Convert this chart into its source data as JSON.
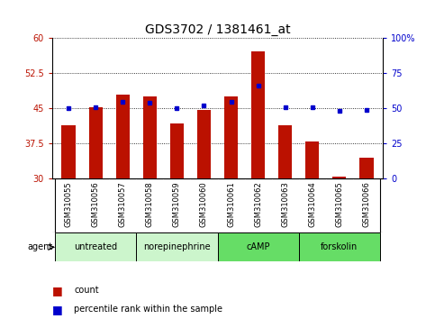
{
  "title": "GDS3702 / 1381461_at",
  "samples": [
    "GSM310055",
    "GSM310056",
    "GSM310057",
    "GSM310058",
    "GSM310059",
    "GSM310060",
    "GSM310061",
    "GSM310062",
    "GSM310063",
    "GSM310064",
    "GSM310065",
    "GSM310066"
  ],
  "counts": [
    41.5,
    45.3,
    48.0,
    47.5,
    41.8,
    44.7,
    47.5,
    57.2,
    41.5,
    38.0,
    30.5,
    34.5
  ],
  "percentiles": [
    50,
    51,
    55,
    54,
    50,
    52,
    55,
    66,
    51,
    51,
    48,
    49
  ],
  "y_min": 30,
  "y_max": 60,
  "y_ticks": [
    30,
    37.5,
    45,
    52.5,
    60
  ],
  "right_y_ticks": [
    0,
    25,
    50,
    75,
    100
  ],
  "right_y_labels": [
    "0",
    "25",
    "50",
    "75",
    "100%"
  ],
  "bar_color": "#bb1100",
  "dot_color": "#0000cc",
  "plot_bg": "#ffffff",
  "tick_bg": "#d0d0d0",
  "agent_groups": [
    {
      "label": "untreated",
      "start": 0,
      "end": 3,
      "color": "#ccf5cc"
    },
    {
      "label": "norepinephrine",
      "start": 3,
      "end": 6,
      "color": "#ccf5cc"
    },
    {
      "label": "cAMP",
      "start": 6,
      "end": 9,
      "color": "#66dd66"
    },
    {
      "label": "forskolin",
      "start": 9,
      "end": 12,
      "color": "#66dd66"
    }
  ],
  "title_fontsize": 10,
  "tick_fontsize": 7,
  "sample_fontsize": 6,
  "agent_fontsize": 7,
  "legend_fontsize": 7
}
